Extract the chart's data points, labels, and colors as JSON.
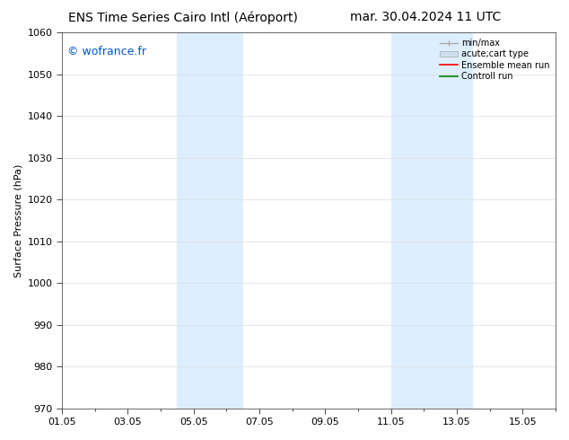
{
  "title_left": "ENS Time Series Cairo Intl (Aéroport)",
  "title_right": "mar. 30.04.2024 11 UTC",
  "ylabel": "Surface Pressure (hPa)",
  "ylim": [
    970,
    1060
  ],
  "yticks": [
    970,
    980,
    990,
    1000,
    1010,
    1020,
    1030,
    1040,
    1050,
    1060
  ],
  "xlim": [
    0,
    15
  ],
  "xtick_positions": [
    0,
    2,
    4,
    6,
    8,
    10,
    12,
    14
  ],
  "xtick_labels": [
    "01.05",
    "03.05",
    "05.05",
    "07.05",
    "09.05",
    "11.05",
    "13.05",
    "15.05"
  ],
  "shaded_bands": [
    {
      "xstart": 3.5,
      "xend": 5.5
    },
    {
      "xstart": 10.0,
      "xend": 12.5
    }
  ],
  "band_color": "#ddeeff",
  "watermark_text": "© wofrance.fr",
  "watermark_color": "#0055cc",
  "legend_entries": [
    {
      "label": "min/max",
      "color": "#aaaaaa"
    },
    {
      "label": "acute;cart type",
      "color": "#cce0f0"
    },
    {
      "label": "Ensemble mean run",
      "color": "red"
    },
    {
      "label": "Controll run",
      "color": "green"
    }
  ],
  "bg_color": "#ffffff",
  "spine_color": "#333333",
  "title_fontsize": 10,
  "tick_fontsize": 8,
  "ylabel_fontsize": 8,
  "legend_fontsize": 7,
  "watermark_fontsize": 9
}
